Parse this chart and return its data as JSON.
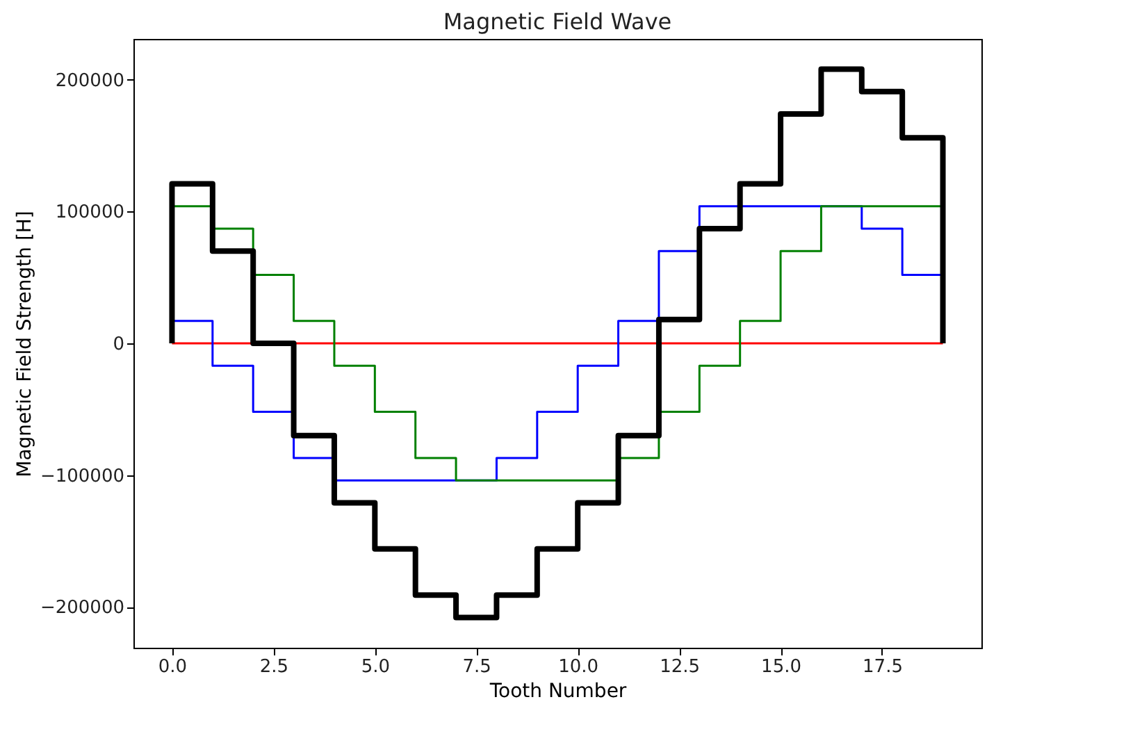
{
  "chart_data": {
    "type": "step",
    "title": "Magnetic Field Wave",
    "xlabel": "Tooth Number",
    "ylabel": "Magnetic Field Strength [H]",
    "xlim": [
      -0.95,
      19.95
    ],
    "ylim": [
      -231000,
      231000
    ],
    "xticks": [
      {
        "value": 0,
        "label": "0.0"
      },
      {
        "value": 2.5,
        "label": "2.5"
      },
      {
        "value": 5,
        "label": "5.0"
      },
      {
        "value": 7.5,
        "label": "7.5"
      },
      {
        "value": 10,
        "label": "10.0"
      },
      {
        "value": 12.5,
        "label": "12.5"
      },
      {
        "value": 15,
        "label": "15.0"
      },
      {
        "value": 17.5,
        "label": "17.5"
      }
    ],
    "yticks": [
      {
        "value": -200000,
        "label": "−200000"
      },
      {
        "value": -100000,
        "label": "−100000"
      },
      0,
      100000,
      200000
    ],
    "grid": false,
    "series": [
      {
        "color": "#ff0000",
        "x": [
          0,
          19
        ],
        "values": [
          0,
          0
        ]
      },
      {
        "color": "#0000ff",
        "x": [
          0,
          0,
          1,
          2,
          3,
          4,
          5,
          6,
          7,
          8,
          9,
          10,
          11,
          12,
          13,
          14,
          15,
          16,
          17,
          18,
          19
        ],
        "values": [
          0,
          17000,
          -17000,
          -52000,
          -87000,
          -104000,
          -104000,
          -104000,
          -104000,
          -87000,
          -52000,
          -17000,
          17000,
          70000,
          104000,
          104000,
          104000,
          104000,
          87000,
          52000,
          52000
        ]
      },
      {
        "color": "#008000",
        "x": [
          0,
          0,
          1,
          2,
          3,
          4,
          5,
          6,
          7,
          8,
          9,
          10,
          11,
          12,
          13,
          14,
          15,
          16,
          17,
          18,
          19
        ],
        "values": [
          0,
          104000,
          87000,
          52000,
          17000,
          -17000,
          -52000,
          -87000,
          -104000,
          -104000,
          -104000,
          -104000,
          -87000,
          -52000,
          -17000,
          17000,
          70000,
          104000,
          104000,
          104000,
          104000
        ]
      },
      {
        "color": "#000000",
        "x": [
          0,
          0,
          1,
          2,
          3,
          4,
          5,
          6,
          7,
          8,
          9,
          10,
          11,
          12,
          13,
          14,
          15,
          16,
          17,
          18,
          19
        ],
        "values": [
          0,
          121000,
          70000,
          0,
          -70000,
          -121000,
          -156000,
          -191000,
          -208000,
          -191000,
          -156000,
          -121000,
          -70000,
          18000,
          87000,
          121000,
          174000,
          208000,
          191000,
          156000,
          0
        ]
      }
    ]
  }
}
